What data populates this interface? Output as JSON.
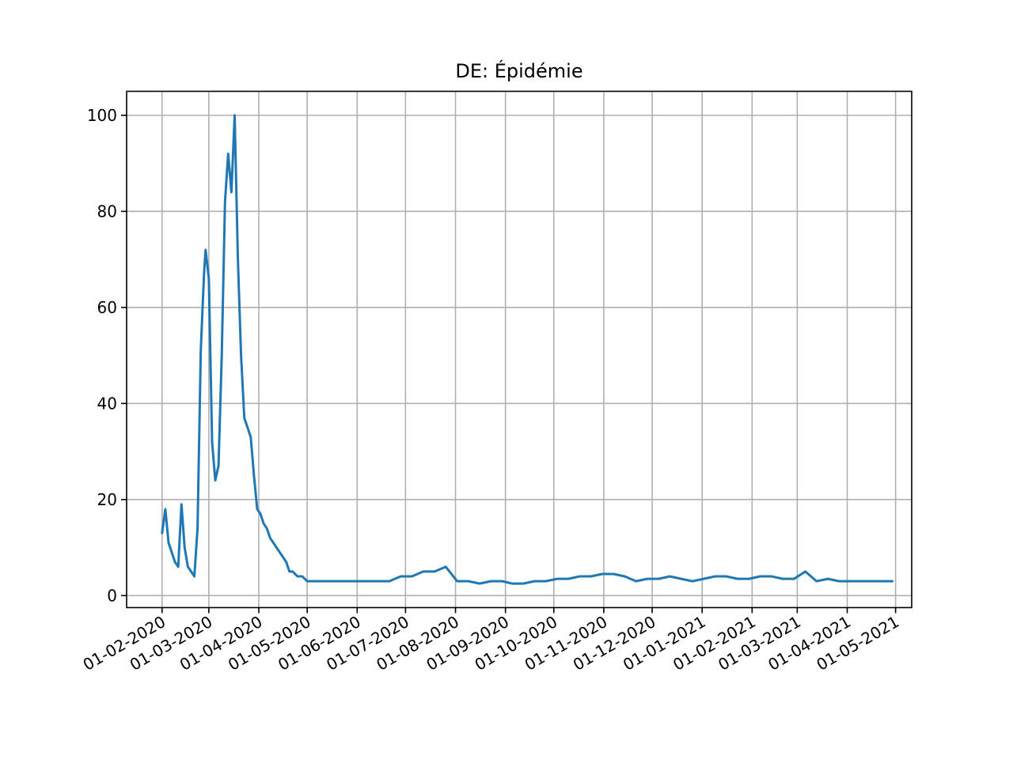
{
  "chart_data": {
    "type": "line",
    "title": "DE: Épidémie",
    "xlabel": "",
    "ylabel": "",
    "grid": true,
    "legend": "none",
    "x_ticks": [
      "01-02-2020",
      "01-03-2020",
      "01-04-2020",
      "01-05-2020",
      "01-06-2020",
      "01-07-2020",
      "01-08-2020",
      "01-09-2020",
      "01-10-2020",
      "01-11-2020",
      "01-12-2020",
      "01-01-2021",
      "01-02-2021",
      "01-03-2021",
      "01-04-2021",
      "01-05-2021"
    ],
    "y_ticks": [
      0,
      20,
      40,
      60,
      80,
      100
    ],
    "ylim": [
      -2.5,
      105
    ],
    "xlim": [
      "2020-01-10",
      "2021-05-11"
    ],
    "series": [
      {
        "color": "#1f77b4",
        "x": [
          "2020-02-01",
          "2020-02-03",
          "2020-02-05",
          "2020-02-07",
          "2020-02-09",
          "2020-02-11",
          "2020-02-13",
          "2020-02-15",
          "2020-02-17",
          "2020-02-19",
          "2020-02-21",
          "2020-02-23",
          "2020-02-25",
          "2020-02-27",
          "2020-02-28",
          "2020-03-01",
          "2020-03-03",
          "2020-03-05",
          "2020-03-07",
          "2020-03-09",
          "2020-03-11",
          "2020-03-13",
          "2020-03-15",
          "2020-03-17",
          "2020-03-19",
          "2020-03-21",
          "2020-03-23",
          "2020-03-25",
          "2020-03-27",
          "2020-03-28",
          "2020-03-29",
          "2020-03-31",
          "2020-04-02",
          "2020-04-04",
          "2020-04-06",
          "2020-04-08",
          "2020-04-10",
          "2020-04-12",
          "2020-04-14",
          "2020-04-16",
          "2020-04-18",
          "2020-04-20",
          "2020-04-22",
          "2020-04-25",
          "2020-04-28",
          "2020-05-01",
          "2020-05-04",
          "2020-05-07",
          "2020-05-10",
          "2020-05-14",
          "2020-05-18",
          "2020-05-22",
          "2020-05-26",
          "2020-06-01",
          "2020-06-07",
          "2020-06-14",
          "2020-06-21",
          "2020-06-28",
          "2020-07-05",
          "2020-07-12",
          "2020-07-19",
          "2020-07-26",
          "2020-08-02",
          "2020-08-09",
          "2020-08-16",
          "2020-08-23",
          "2020-08-30",
          "2020-09-05",
          "2020-09-07",
          "2020-09-12",
          "2020-09-19",
          "2020-09-26",
          "2020-10-03",
          "2020-10-10",
          "2020-10-17",
          "2020-10-24",
          "2020-10-31",
          "2020-11-07",
          "2020-11-14",
          "2020-11-21",
          "2020-11-28",
          "2020-12-05",
          "2020-12-12",
          "2020-12-19",
          "2020-12-26",
          "2021-01-02",
          "2021-01-09",
          "2021-01-16",
          "2021-01-23",
          "2021-01-30",
          "2021-02-06",
          "2021-02-13",
          "2021-02-20",
          "2021-02-27",
          "2021-03-06",
          "2021-03-13",
          "2021-03-20",
          "2021-03-27",
          "2021-04-03",
          "2021-04-10",
          "2021-04-17",
          "2021-04-24",
          "2021-04-29"
        ],
        "y": [
          13,
          18,
          11,
          9,
          7,
          6,
          19,
          10,
          6,
          5,
          4,
          14,
          51,
          67,
          72,
          66,
          32,
          24,
          27,
          50,
          82,
          92,
          84,
          100,
          70,
          50,
          37,
          35,
          33,
          29,
          25,
          18,
          17,
          15,
          14,
          12,
          11,
          10,
          9,
          8,
          7,
          5,
          5,
          4,
          4,
          3,
          3,
          3,
          3,
          3,
          3,
          3,
          3,
          3,
          3,
          3,
          3,
          4,
          4,
          5,
          5,
          6,
          3,
          3,
          2.5,
          3,
          3,
          2.5,
          2.5,
          2.5,
          3,
          3,
          3.5,
          3.5,
          4,
          4,
          4.5,
          4.5,
          4,
          3,
          3.5,
          3.5,
          4,
          3.5,
          3,
          3.5,
          4,
          4,
          3.5,
          3.5,
          4,
          4,
          3.5,
          3.5,
          5,
          3,
          3.5,
          3,
          3,
          3,
          3,
          3,
          3
        ]
      }
    ]
  }
}
